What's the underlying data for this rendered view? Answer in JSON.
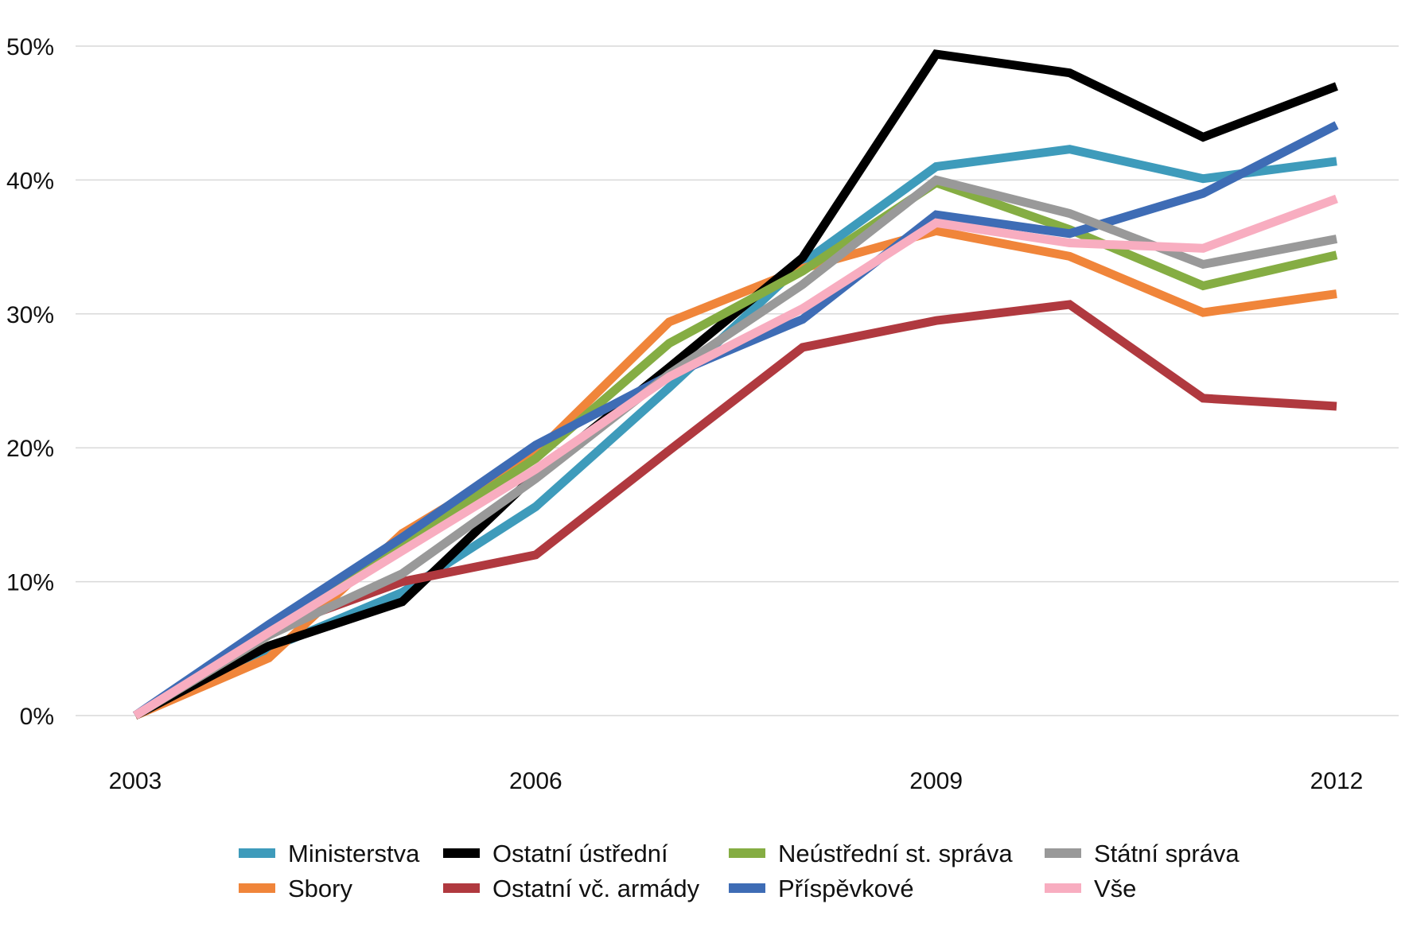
{
  "chart_data": {
    "type": "line",
    "title": "",
    "xlabel": "",
    "ylabel": "",
    "x": [
      2003,
      2004,
      2005,
      2006,
      2007,
      2008,
      2009,
      2010,
      2011,
      2012
    ],
    "x_ticks": [
      {
        "value": 2003,
        "label": "2003"
      },
      {
        "value": 2006,
        "label": "2006"
      },
      {
        "value": 2009,
        "label": "2009"
      },
      {
        "value": 2012,
        "label": "2012"
      }
    ],
    "y_ticks": [
      {
        "value": 0,
        "label": "0%"
      },
      {
        "value": 10,
        "label": "10%"
      },
      {
        "value": 20,
        "label": "20%"
      },
      {
        "value": 30,
        "label": "30%"
      },
      {
        "value": 40,
        "label": "40%"
      },
      {
        "value": 50,
        "label": "50%"
      }
    ],
    "ylim": [
      0,
      50
    ],
    "xlim": [
      2003,
      2012
    ],
    "grid": "horizontal",
    "legend_position": "bottom",
    "series": [
      {
        "name": "Ministerstva",
        "color": "#3e9bbb",
        "values": [
          0,
          5.0,
          9.2,
          15.6,
          24.5,
          33.8,
          41.0,
          42.3,
          40.1,
          41.4
        ]
      },
      {
        "name": "Sbory",
        "color": "#f0853a",
        "values": [
          0,
          4.3,
          13.6,
          19.6,
          29.4,
          33.4,
          36.2,
          34.3,
          30.1,
          31.5
        ]
      },
      {
        "name": "Ostatní ústřední",
        "color": "#000000",
        "values": [
          0,
          5.2,
          8.5,
          18.0,
          26.0,
          34.2,
          49.4,
          48.0,
          43.2,
          47.0
        ]
      },
      {
        "name": "Ostatní vč. armády",
        "color": "#b0393f",
        "values": [
          0,
          6.4,
          10.0,
          12.0,
          19.8,
          27.5,
          29.5,
          30.7,
          23.7,
          23.1
        ]
      },
      {
        "name": "Neústřední st. správa",
        "color": "#85ad43",
        "values": [
          0,
          6.0,
          12.8,
          19.2,
          27.8,
          33.2,
          39.8,
          36.3,
          32.1,
          34.4
        ]
      },
      {
        "name": "Příspěvkové",
        "color": "#3e6cb5",
        "values": [
          0,
          6.8,
          13.3,
          20.2,
          25.4,
          29.6,
          37.4,
          36.0,
          39.0,
          44.1
        ]
      },
      {
        "name": "Státní správa",
        "color": "#999999",
        "values": [
          0,
          6.0,
          10.6,
          17.7,
          25.5,
          32.2,
          40.0,
          37.5,
          33.7,
          35.6
        ]
      },
      {
        "name": "Vše",
        "color": "#f8adc0",
        "values": [
          0,
          6.2,
          12.3,
          18.4,
          25.3,
          30.4,
          36.8,
          35.3,
          34.9,
          38.6
        ]
      }
    ]
  }
}
